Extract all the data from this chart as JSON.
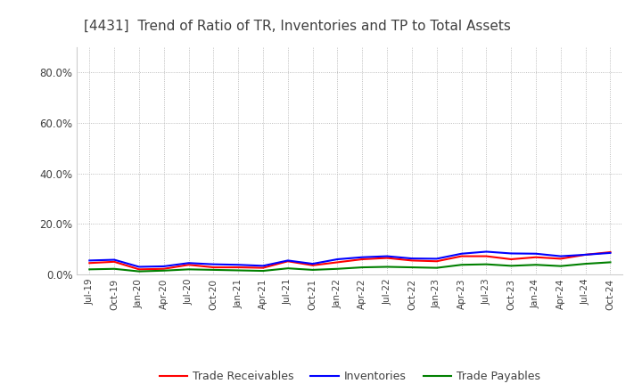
{
  "title": "[4431]  Trend of Ratio of TR, Inventories and TP to Total Assets",
  "title_fontsize": 11,
  "title_color": "#404040",
  "background_color": "#ffffff",
  "grid_color": "#aaaaaa",
  "ylim": [
    0.0,
    0.9
  ],
  "yticks": [
    0.0,
    0.2,
    0.4,
    0.6,
    0.8
  ],
  "ytick_labels": [
    "0.0%",
    "20.0%",
    "40.0%",
    "60.0%",
    "80.0%"
  ],
  "legend_labels": [
    "Trade Receivables",
    "Inventories",
    "Trade Payables"
  ],
  "legend_colors": [
    "#ff0000",
    "#0000ff",
    "#008000"
  ],
  "dates": [
    "Jul-19",
    "Oct-19",
    "Jan-20",
    "Apr-20",
    "Jul-20",
    "Oct-20",
    "Jan-21",
    "Apr-21",
    "Jul-21",
    "Oct-21",
    "Jan-22",
    "Apr-22",
    "Jul-22",
    "Oct-22",
    "Jan-23",
    "Apr-23",
    "Jul-23",
    "Oct-23",
    "Jan-24",
    "Apr-24",
    "Jul-24",
    "Oct-24"
  ],
  "trade_receivables": [
    0.045,
    0.05,
    0.02,
    0.022,
    0.038,
    0.028,
    0.028,
    0.026,
    0.052,
    0.036,
    0.048,
    0.06,
    0.065,
    0.055,
    0.052,
    0.072,
    0.072,
    0.06,
    0.068,
    0.062,
    0.078,
    0.088
  ],
  "inventories": [
    0.055,
    0.058,
    0.03,
    0.032,
    0.045,
    0.04,
    0.038,
    0.034,
    0.055,
    0.042,
    0.06,
    0.068,
    0.072,
    0.063,
    0.062,
    0.082,
    0.09,
    0.083,
    0.082,
    0.072,
    0.078,
    0.085
  ],
  "trade_payables": [
    0.02,
    0.022,
    0.012,
    0.015,
    0.02,
    0.018,
    0.016,
    0.014,
    0.024,
    0.018,
    0.022,
    0.028,
    0.03,
    0.028,
    0.026,
    0.038,
    0.04,
    0.034,
    0.038,
    0.033,
    0.042,
    0.048
  ]
}
